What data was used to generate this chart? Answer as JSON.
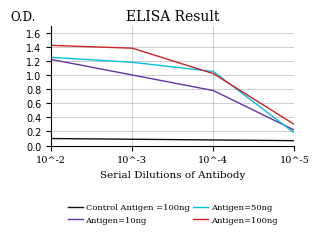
{
  "title": "ELISA Result",
  "ylabel": "O.D.",
  "xlabel": "Serial Dilutions of Antibody",
  "x_values": [
    0.01,
    0.001,
    0.0001,
    1e-05
  ],
  "lines": [
    {
      "label": "Control Antigen =100ng",
      "color": "#111111",
      "y_values": [
        0.1,
        0.09,
        0.08,
        0.07
      ]
    },
    {
      "label": "Antigen=10ng",
      "color": "#6633AA",
      "y_values": [
        1.22,
        1.0,
        0.78,
        0.22
      ]
    },
    {
      "label": "Antigen=50ng",
      "color": "#00BFDF",
      "y_values": [
        1.25,
        1.18,
        1.05,
        0.18
      ]
    },
    {
      "label": "Antigen=100ng",
      "color": "#CC2222",
      "y_values": [
        1.42,
        1.38,
        1.02,
        0.3
      ]
    }
  ],
  "ylim": [
    0,
    1.7
  ],
  "yticks": [
    0,
    0.2,
    0.4,
    0.6,
    0.8,
    1.0,
    1.2,
    1.4,
    1.6
  ],
  "xtick_labels": [
    "10^-2",
    "10^-3",
    "10^-4",
    "10^-5"
  ],
  "xtick_positions": [
    0.01,
    0.001,
    0.0001,
    1e-05
  ],
  "background_color": "#ffffff",
  "grid_color": "#bbbbbb",
  "title_fontsize": 10,
  "label_fontsize": 7.5,
  "tick_fontsize": 7,
  "legend_fontsize": 6
}
